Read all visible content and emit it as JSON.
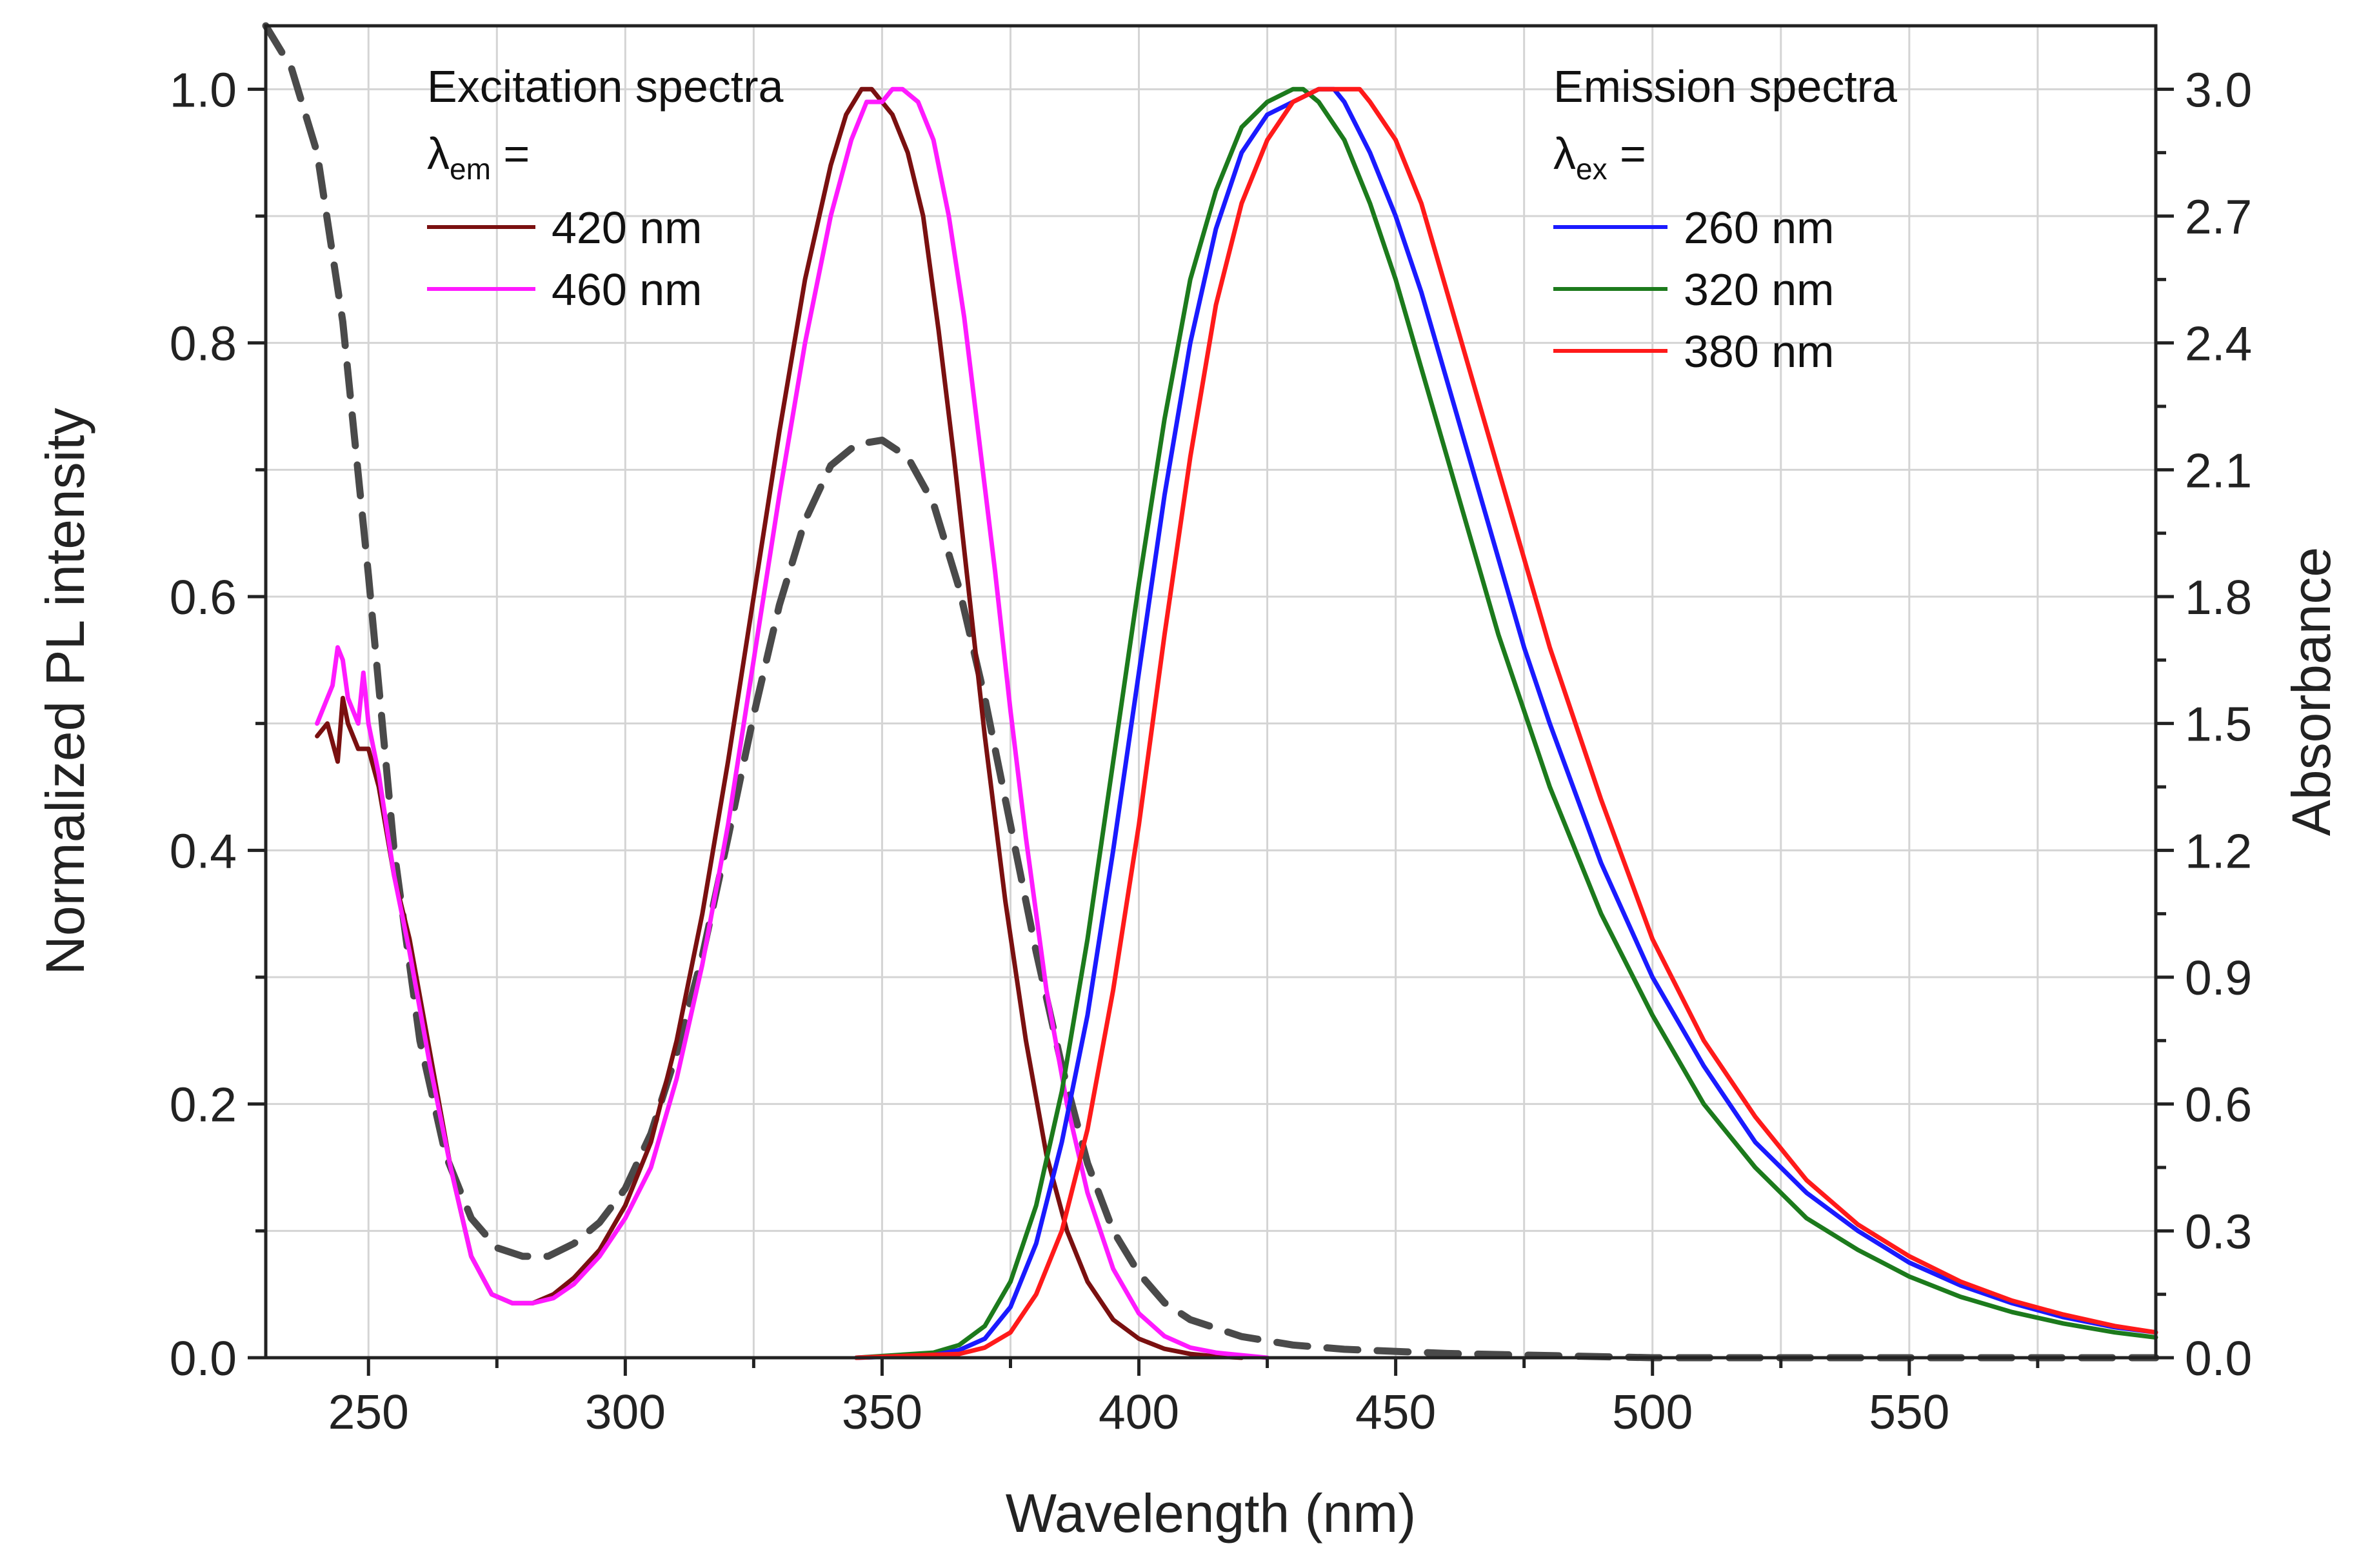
{
  "chart_data": {
    "type": "line",
    "xlabel": "Wavelength (nm)",
    "ylabel": "Normalized PL intensity",
    "y2label": "Absorbance",
    "xlim": [
      230,
      598
    ],
    "ylim": [
      0,
      1.05
    ],
    "y2lim": [
      0,
      3.15
    ],
    "grid": true,
    "x_ticks": [
      250,
      300,
      350,
      400,
      450,
      500,
      550
    ],
    "y_ticks": [
      0.0,
      0.2,
      0.4,
      0.6,
      0.8,
      1.0
    ],
    "y_tick_labels": [
      "0.0",
      "0.2",
      "0.4",
      "0.6",
      "0.8",
      "1.0"
    ],
    "y2_ticks": [
      0.0,
      0.3,
      0.6,
      0.9,
      1.2,
      1.5,
      1.8,
      2.1,
      2.4,
      2.7,
      3.0
    ],
    "y2_tick_labels": [
      "0.0",
      "0.3",
      "0.6",
      "0.9",
      "1.2",
      "1.5",
      "1.8",
      "2.1",
      "2.4",
      "2.7",
      "3.0"
    ],
    "legends": {
      "excitation": {
        "title": "Excitation spectra",
        "param_symbol": "λ",
        "param_sub": "em",
        "param_suffix": " =",
        "entries": [
          "420 nm",
          "460 nm"
        ]
      },
      "emission": {
        "title": "Emission spectra",
        "param_symbol": "λ",
        "param_sub": "ex",
        "param_suffix": " =",
        "entries": [
          "260 nm",
          "320 nm",
          "380 nm"
        ]
      }
    },
    "series": [
      {
        "name": "Excitation, λem = 420 nm",
        "axis": "left",
        "color": "#7a1010",
        "style": "solid",
        "x": [
          240,
          242,
          244,
          245,
          246,
          248,
          250,
          252,
          255,
          258,
          262,
          266,
          270,
          274,
          278,
          282,
          286,
          290,
          295,
          300,
          305,
          310,
          315,
          320,
          325,
          330,
          335,
          340,
          343,
          346,
          348,
          350,
          352,
          355,
          358,
          361,
          364,
          367,
          370,
          374,
          378,
          382,
          386,
          390,
          395,
          400,
          405,
          410,
          415,
          420
        ],
        "y": [
          0.49,
          0.5,
          0.47,
          0.52,
          0.5,
          0.48,
          0.48,
          0.45,
          0.38,
          0.33,
          0.24,
          0.15,
          0.08,
          0.05,
          0.043,
          0.043,
          0.05,
          0.063,
          0.085,
          0.12,
          0.17,
          0.25,
          0.35,
          0.47,
          0.6,
          0.73,
          0.85,
          0.94,
          0.98,
          1.0,
          1.0,
          0.99,
          0.98,
          0.95,
          0.9,
          0.81,
          0.71,
          0.6,
          0.49,
          0.36,
          0.25,
          0.16,
          0.1,
          0.06,
          0.03,
          0.015,
          0.007,
          0.003,
          0.001,
          0.0
        ]
      },
      {
        "name": "Excitation, λem = 460 nm",
        "axis": "left",
        "color": "#ff1aff",
        "style": "solid",
        "x": [
          240,
          242,
          243,
          244,
          245,
          246,
          248,
          249,
          250,
          252,
          255,
          258,
          262,
          266,
          270,
          274,
          278,
          282,
          286,
          290,
          295,
          300,
          305,
          310,
          315,
          320,
          325,
          330,
          335,
          340,
          344,
          347,
          350,
          352,
          354,
          357,
          360,
          363,
          366,
          369,
          372,
          375,
          378,
          382,
          386,
          390,
          395,
          400,
          405,
          410,
          415,
          420,
          425
        ],
        "y": [
          0.5,
          0.52,
          0.53,
          0.56,
          0.55,
          0.52,
          0.5,
          0.54,
          0.5,
          0.46,
          0.38,
          0.32,
          0.23,
          0.15,
          0.08,
          0.05,
          0.043,
          0.043,
          0.047,
          0.058,
          0.08,
          0.11,
          0.15,
          0.22,
          0.31,
          0.42,
          0.55,
          0.68,
          0.8,
          0.9,
          0.96,
          0.99,
          0.99,
          1.0,
          1.0,
          0.99,
          0.96,
          0.9,
          0.82,
          0.72,
          0.62,
          0.51,
          0.41,
          0.29,
          0.2,
          0.13,
          0.07,
          0.035,
          0.017,
          0.008,
          0.004,
          0.002,
          0.0
        ]
      },
      {
        "name": "Emission, λex = 260 nm",
        "axis": "left",
        "color": "#1a1aff",
        "style": "solid",
        "x": [
          345,
          360,
          365,
          370,
          375,
          380,
          385,
          390,
          395,
          400,
          405,
          410,
          415,
          420,
          425,
          430,
          435,
          438,
          440,
          445,
          450,
          455,
          460,
          465,
          470,
          475,
          480,
          490,
          500,
          510,
          520,
          530,
          540,
          550,
          560,
          570,
          580,
          590,
          598
        ],
        "y": [
          0.0,
          0.002,
          0.006,
          0.015,
          0.04,
          0.09,
          0.17,
          0.27,
          0.4,
          0.54,
          0.68,
          0.8,
          0.89,
          0.95,
          0.98,
          0.99,
          1.0,
          1.0,
          0.99,
          0.95,
          0.9,
          0.84,
          0.77,
          0.7,
          0.63,
          0.56,
          0.5,
          0.39,
          0.3,
          0.23,
          0.17,
          0.13,
          0.1,
          0.075,
          0.057,
          0.043,
          0.032,
          0.024,
          0.02
        ]
      },
      {
        "name": "Emission, λex = 320 nm",
        "axis": "left",
        "color": "#1c7a1c",
        "style": "solid",
        "x": [
          345,
          360,
          365,
          370,
          375,
          380,
          385,
          390,
          395,
          400,
          405,
          410,
          415,
          420,
          425,
          430,
          432,
          435,
          440,
          445,
          450,
          455,
          460,
          465,
          470,
          475,
          480,
          490,
          500,
          510,
          520,
          530,
          540,
          550,
          560,
          570,
          580,
          590,
          598
        ],
        "y": [
          0.0,
          0.004,
          0.01,
          0.025,
          0.06,
          0.12,
          0.21,
          0.33,
          0.47,
          0.61,
          0.74,
          0.85,
          0.92,
          0.97,
          0.99,
          1.0,
          1.0,
          0.99,
          0.96,
          0.91,
          0.85,
          0.78,
          0.71,
          0.64,
          0.57,
          0.51,
          0.45,
          0.35,
          0.27,
          0.2,
          0.15,
          0.11,
          0.085,
          0.064,
          0.048,
          0.036,
          0.027,
          0.02,
          0.016
        ]
      },
      {
        "name": "Emission, λex = 380 nm",
        "axis": "left",
        "color": "#ff1a1a",
        "style": "solid",
        "x": [
          345,
          365,
          370,
          375,
          380,
          385,
          390,
          395,
          400,
          405,
          410,
          415,
          420,
          425,
          430,
          435,
          440,
          443,
          445,
          450,
          455,
          460,
          465,
          470,
          475,
          480,
          490,
          500,
          510,
          520,
          530,
          540,
          550,
          560,
          570,
          580,
          590,
          598
        ],
        "y": [
          0.0,
          0.003,
          0.008,
          0.02,
          0.05,
          0.1,
          0.18,
          0.29,
          0.42,
          0.57,
          0.71,
          0.83,
          0.91,
          0.96,
          0.99,
          1.0,
          1.0,
          1.0,
          0.99,
          0.96,
          0.91,
          0.84,
          0.77,
          0.7,
          0.63,
          0.56,
          0.44,
          0.33,
          0.25,
          0.19,
          0.14,
          0.105,
          0.08,
          0.06,
          0.045,
          0.034,
          0.025,
          0.02
        ]
      },
      {
        "name": "Absorbance",
        "axis": "right",
        "color": "#4a4a4a",
        "style": "dashed",
        "x": [
          230,
          235,
          240,
          245,
          250,
          255,
          260,
          265,
          270,
          275,
          280,
          285,
          290,
          295,
          300,
          305,
          310,
          315,
          320,
          325,
          330,
          335,
          340,
          345,
          350,
          355,
          360,
          365,
          370,
          375,
          380,
          385,
          390,
          395,
          400,
          405,
          410,
          420,
          430,
          440,
          460,
          500,
          598
        ],
        "y": [
          3.15,
          3.05,
          2.85,
          2.45,
          1.85,
          1.2,
          0.75,
          0.48,
          0.33,
          0.26,
          0.24,
          0.24,
          0.27,
          0.32,
          0.4,
          0.53,
          0.72,
          0.95,
          1.23,
          1.52,
          1.78,
          1.98,
          2.11,
          2.16,
          2.17,
          2.13,
          2.02,
          1.82,
          1.56,
          1.26,
          0.96,
          0.69,
          0.46,
          0.3,
          0.2,
          0.13,
          0.09,
          0.05,
          0.03,
          0.02,
          0.01,
          0.0,
          0.0
        ]
      }
    ]
  }
}
